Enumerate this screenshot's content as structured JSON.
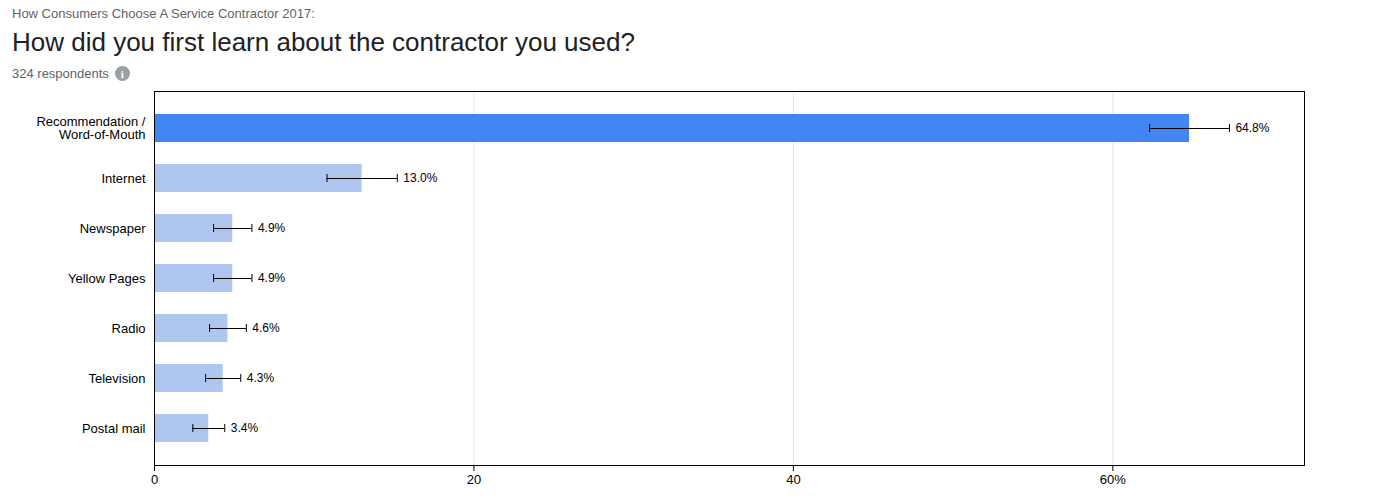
{
  "chart_data": {
    "type": "bar",
    "orientation": "horizontal",
    "suptitle": "How Consumers Choose A Service Contractor 2017:",
    "title": "How did you first learn about the contractor you used?",
    "subtitle": "324 respondents",
    "annotations": [
      "i"
    ],
    "categories": [
      "Recommendation /\nWord-of-Mouth",
      "Internet",
      "Newspaper",
      "Yellow Pages",
      "Radio",
      "Television",
      "Postal mail"
    ],
    "values": [
      64.8,
      13.0,
      4.9,
      4.9,
      4.6,
      4.3,
      3.4
    ],
    "errors": [
      2.5,
      2.2,
      1.2,
      1.2,
      1.15,
      1.1,
      1.0
    ],
    "value_labels": [
      "64.8%",
      "13.0%",
      "4.9%",
      "4.9%",
      "4.6%",
      "4.3%",
      "3.4%"
    ],
    "data_labels": true,
    "colors": [
      "#4285f4",
      "#aec6f0",
      "#aec6f0",
      "#aec6f0",
      "#aec6f0",
      "#aec6f0",
      "#aec6f0"
    ],
    "xlim": [
      0,
      72
    ],
    "xticks": [
      0,
      20,
      40,
      {
        "value": 60,
        "label": "60%"
      }
    ],
    "grid": true
  }
}
